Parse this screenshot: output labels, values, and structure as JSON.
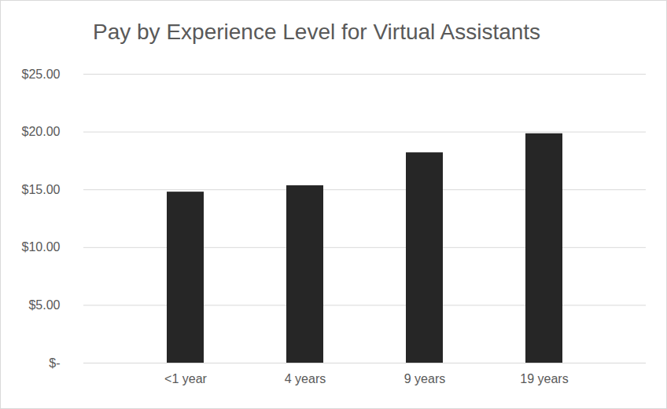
{
  "chart_data": {
    "type": "bar",
    "title": "Pay by Experience Level for Virtual Assistants",
    "categories": [
      "<1 year",
      "4 years",
      "9 years",
      "19 years"
    ],
    "values": [
      14.8,
      15.35,
      18.2,
      19.85
    ],
    "color": "#262626",
    "ylim": [
      0,
      25
    ],
    "yticks": [
      {
        "value": 0,
        "label": "$-"
      },
      {
        "value": 5,
        "label": "$5.00"
      },
      {
        "value": 10,
        "label": "$10.00"
      },
      {
        "value": 15,
        "label": "$15.00"
      },
      {
        "value": 20,
        "label": "$20.00"
      },
      {
        "value": 25,
        "label": "$25.00"
      }
    ],
    "grid": true
  }
}
